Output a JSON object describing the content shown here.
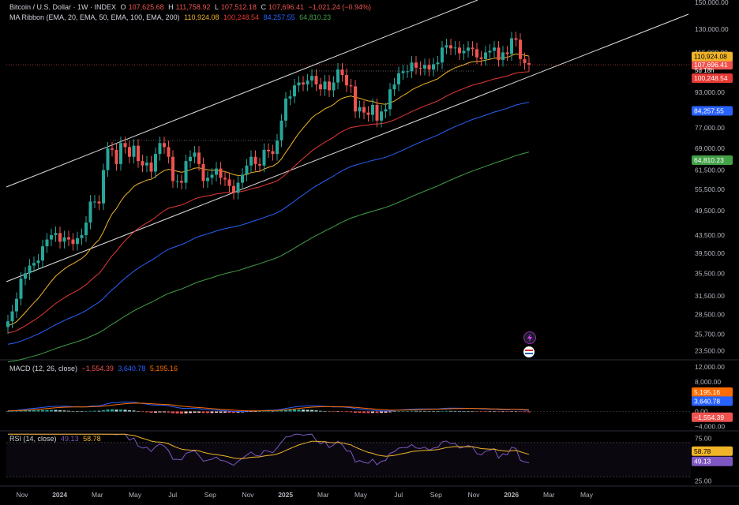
{
  "header": {
    "symbol": "Bitcoin / U.S. Dollar · 1W · INDEX",
    "ohlc": {
      "o_label": "O",
      "o": "107,625.68",
      "h_label": "H",
      "h": "111,758.92",
      "l_label": "L",
      "l": "107,512.18",
      "c_label": "C",
      "c": "107,696.41",
      "change": "−1,021.24 (−0.94%)"
    },
    "ribbon": {
      "label": "MA Ribbon (EMA, 20, EMA, 50, EMA, 100, EMA, 200)",
      "v20": "110,924.08",
      "v50": "100,248.54",
      "v100": "84,257.55",
      "v200": "64,810.23"
    }
  },
  "macd_header": {
    "label": "MACD (12, 26, close)",
    "hist": "−1,554.39",
    "macd": "3,640.78",
    "signal": "5,195.16"
  },
  "rsi_header": {
    "label": "RSI (14, close)",
    "rsi": "49.13",
    "ma": "58.78"
  },
  "colors": {
    "up": "#26a69a",
    "down": "#ef5350",
    "ema20": "#f0b429",
    "ema50": "#e53935",
    "ema100": "#2962ff",
    "ema200": "#43a047",
    "macd": "#2962ff",
    "signal": "#ff6d00",
    "rsi": "#7e57c2",
    "rsi_ma": "#f0b429"
  },
  "chart_data": [
    {
      "type": "candlestick",
      "price_axis_ticks": [
        150000,
        130000,
        115000,
        107696.41,
        100248.54,
        93000,
        84257.55,
        77000,
        69000,
        64810.23,
        61500,
        55500,
        49500,
        43500,
        39500,
        35500,
        31500,
        28500,
        25700,
        23500
      ],
      "price_axis_labels": [
        "150,000.00",
        "130,000.00",
        "115,000.00",
        "107,696.41",
        "100,248.54",
        "93,000.00",
        "84,257.55",
        "77,000.00",
        "69,000.00",
        "64,810.23",
        "61,500.00",
        "55,500.00",
        "49,500.00",
        "43,500.00",
        "39,500.00",
        "35,500.00",
        "31,500.00",
        "28,500.00",
        "25,700.00",
        "23,500.00"
      ],
      "last_price_label": "107,696.41",
      "countdown": "5d 18h",
      "ema20_label": "110,924.08",
      "ema50_label": "100,248.54",
      "ema100_label": "84,257.55",
      "ema200_label": "64,810.23",
      "ylim": [
        22500,
        152000
      ],
      "scale": "log",
      "x_labels": [
        "Nov",
        "2024",
        "Mar",
        "May",
        "Jul",
        "Sep",
        "Nov",
        "2025",
        "Mar",
        "May",
        "Jul",
        "Sep",
        "Nov",
        "2026",
        "Mar",
        "May"
      ],
      "x_label_months": [
        0,
        2,
        4,
        6,
        8,
        10,
        12,
        14,
        16,
        18,
        20,
        22,
        24,
        26,
        28,
        30
      ],
      "closes_weekly": [
        27500,
        29000,
        31000,
        34500,
        35500,
        37000,
        37500,
        38000,
        41000,
        42500,
        43500,
        44000,
        42000,
        43000,
        42500,
        41500,
        42800,
        43500,
        46500,
        52000,
        52000,
        51500,
        61500,
        69000,
        68500,
        63500,
        71000,
        69500,
        66000,
        70000,
        64500,
        63000,
        64000,
        61000,
        67000,
        71000,
        69500,
        66000,
        58000,
        58000,
        57500,
        64500,
        66000,
        67500,
        63500,
        58000,
        59000,
        60000,
        62000,
        59000,
        58500,
        56500,
        54500,
        57500,
        60000,
        63000,
        66000,
        63500,
        63000,
        68500,
        68000,
        67000,
        72000,
        80000,
        90000,
        91000,
        96500,
        98000,
        97000,
        99000,
        101500,
        97000,
        94500,
        98500,
        94000,
        98000,
        105000,
        102000,
        96500,
        96000,
        84000,
        86000,
        83500,
        82500,
        87000,
        80000,
        84000,
        85000,
        94500,
        97000,
        103000,
        104000,
        104000,
        109000,
        106000,
        105500,
        107500,
        105000,
        108000,
        109000,
        118000,
        119500,
        117500,
        118000,
        114500,
        116000,
        118000,
        117000,
        112000,
        111000,
        115000,
        116000,
        118000,
        110500,
        115000,
        114000,
        124000,
        123000,
        111000,
        108700,
        107696
      ]
    },
    {
      "type": "bar+line",
      "name": "MACD",
      "axis_labels": [
        "12,000.00",
        "8,000.00",
        "0.00",
        "−4,000.00"
      ],
      "axis_values": [
        12000,
        8000,
        0,
        -4000
      ],
      "ylim": [
        -5000,
        13500
      ],
      "signal_label": "5,195.16",
      "macd_label": "3,640.78",
      "hist_label": "−1,554.39"
    },
    {
      "type": "line",
      "name": "RSI",
      "axis_labels": [
        "75.00",
        "25.00"
      ],
      "axis_values": [
        75,
        25
      ],
      "bands": [
        70,
        30
      ],
      "ylim": [
        20,
        82
      ],
      "ma_label": "58.78",
      "rsi_label": "49.13"
    }
  ]
}
